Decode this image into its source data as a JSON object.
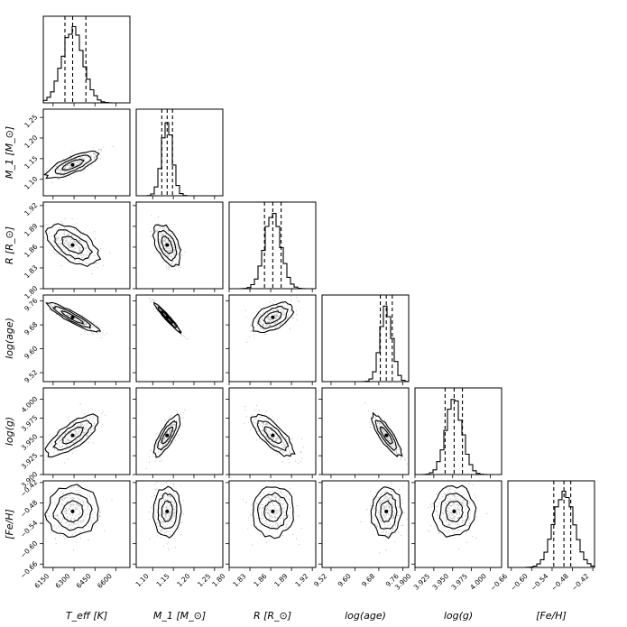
{
  "chart_data": {
    "type": "corner",
    "parameters": [
      {
        "key": "teff",
        "label": "T_eff [K]",
        "range": [
          6080,
          6700
        ],
        "ticks": [
          6150,
          6300,
          6450,
          6600
        ],
        "tick_labels": [
          "6150",
          "6300",
          "6450",
          "6600"
        ],
        "median": 6290,
        "q16": 6235,
        "q84": 6385,
        "sd": 75
      },
      {
        "key": "m1",
        "label": "M_1 [M_⊙]",
        "range": [
          1.06,
          1.27
        ],
        "ticks": [
          1.1,
          1.15,
          1.2,
          1.25
        ],
        "tick_labels": [
          "1.10",
          "1.15",
          "1.20",
          "1.25"
        ],
        "median": 1.135,
        "q16": 1.122,
        "q84": 1.148,
        "sd": 0.013
      },
      {
        "key": "r",
        "label": "R [R_⊙]",
        "range": [
          1.8,
          1.925
        ],
        "ticks": [
          1.8,
          1.83,
          1.86,
          1.89,
          1.92
        ],
        "tick_labels": [
          "1.80",
          "1.83",
          "1.86",
          "1.89",
          "1.92"
        ],
        "median": 1.863,
        "q16": 1.851,
        "q84": 1.875,
        "sd": 0.012
      },
      {
        "key": "logage",
        "label": "log(age)",
        "range": [
          9.49,
          9.78
        ],
        "ticks": [
          9.52,
          9.6,
          9.68,
          9.76
        ],
        "tick_labels": [
          "9.52",
          "9.60",
          "9.68",
          "9.76"
        ],
        "median": 9.705,
        "q16": 9.685,
        "q84": 9.725,
        "sd": 0.02
      },
      {
        "key": "logg",
        "label": "log(g)",
        "range": [
          3.9,
          4.015
        ],
        "ticks": [
          3.9,
          3.925,
          3.95,
          3.975,
          4.0
        ],
        "tick_labels": [
          "3.900",
          "3.925",
          "3.950",
          "3.975",
          "4.000"
        ],
        "median": 3.952,
        "q16": 3.94,
        "q84": 3.963,
        "sd": 0.011
      },
      {
        "key": "feh",
        "label": "[Fe/H]",
        "range": [
          -0.67,
          -0.415
        ],
        "ticks": [
          -0.66,
          -0.6,
          -0.54,
          -0.48,
          -0.42
        ],
        "tick_labels": [
          "−0.66",
          "−0.60",
          "−0.54",
          "−0.48",
          "−0.42"
        ],
        "median": -0.505,
        "q16": -0.535,
        "q84": -0.485,
        "sd": 0.03
      }
    ],
    "correlations": [
      [
        1,
        0.75,
        -0.55,
        -0.92,
        0.75,
        0.05
      ],
      [
        0.75,
        1,
        -0.5,
        -0.97,
        0.8,
        0.05
      ],
      [
        -0.55,
        -0.5,
        1,
        0.5,
        -0.75,
        0.05
      ],
      [
        -0.92,
        -0.97,
        0.5,
        1,
        -0.85,
        0.05
      ],
      [
        0.75,
        0.8,
        -0.75,
        -0.85,
        1,
        0.05
      ],
      [
        0.05,
        0.05,
        0.05,
        0.05,
        0.05,
        1
      ]
    ],
    "contour_levels": "1, 2 and 3 sigma",
    "quantiles_shown": [
      0.16,
      0.5,
      0.84
    ],
    "colors": {
      "contour_fill_dark": "#3a3a3a",
      "contour_fill_mid": "#7a7a7a",
      "contour_fill_light": "#c8c8c8",
      "scatter": "#b5b5b5",
      "line": "#000000"
    }
  }
}
